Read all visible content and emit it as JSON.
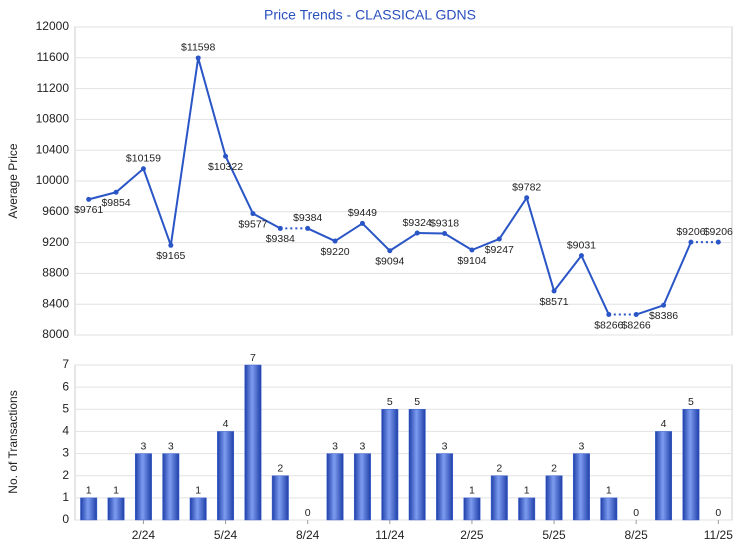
{
  "chart_data": [
    {
      "type": "line",
      "title": "Price Trends - CLASSICAL GDNS",
      "y_label": "Average Price",
      "color": "#2a55c6",
      "values": [
        9761,
        9854,
        10159,
        9165,
        11598,
        10322,
        9577,
        9384,
        9384,
        9220,
        9449,
        9094,
        9324,
        9318,
        9104,
        9247,
        9782,
        8571,
        9031,
        8266,
        8266,
        8386,
        9206,
        9206
      ],
      "value_labels": [
        "$9761",
        "$9854",
        "$10159",
        "$9165",
        "$11598",
        "$10322",
        "$9577",
        "$9384",
        "$9384",
        "$9220",
        "$9449",
        "$9094",
        "$9324",
        "$9318",
        "$9104",
        "$9247",
        "$9782",
        "$8571",
        "$9031",
        "$8266",
        "$8266",
        "$8386",
        "$9206",
        "$9206"
      ],
      "ylim": [
        8000,
        12000
      ],
      "yticks": [
        8000,
        8400,
        8800,
        9200,
        9600,
        10000,
        10400,
        10800,
        11200,
        11600,
        12000
      ],
      "grid": true
    },
    {
      "type": "bar",
      "y_label": "No. of Transactions",
      "color": "#3a62d0",
      "categories": [
        null,
        null,
        "2/24",
        null,
        null,
        "5/24",
        null,
        null,
        "8/24",
        null,
        null,
        "11/24",
        null,
        null,
        "2/25",
        null,
        null,
        "5/25",
        null,
        null,
        "8/25",
        null,
        null,
        "11/25"
      ],
      "values": [
        1,
        1,
        3,
        3,
        1,
        4,
        7,
        2,
        0,
        3,
        3,
        5,
        5,
        3,
        1,
        2,
        1,
        2,
        3,
        1,
        0,
        4,
        5,
        0
      ],
      "ylim": [
        0,
        7
      ],
      "yticks": [
        0,
        1,
        2,
        3,
        4,
        5,
        6,
        7
      ],
      "grid": true
    }
  ]
}
